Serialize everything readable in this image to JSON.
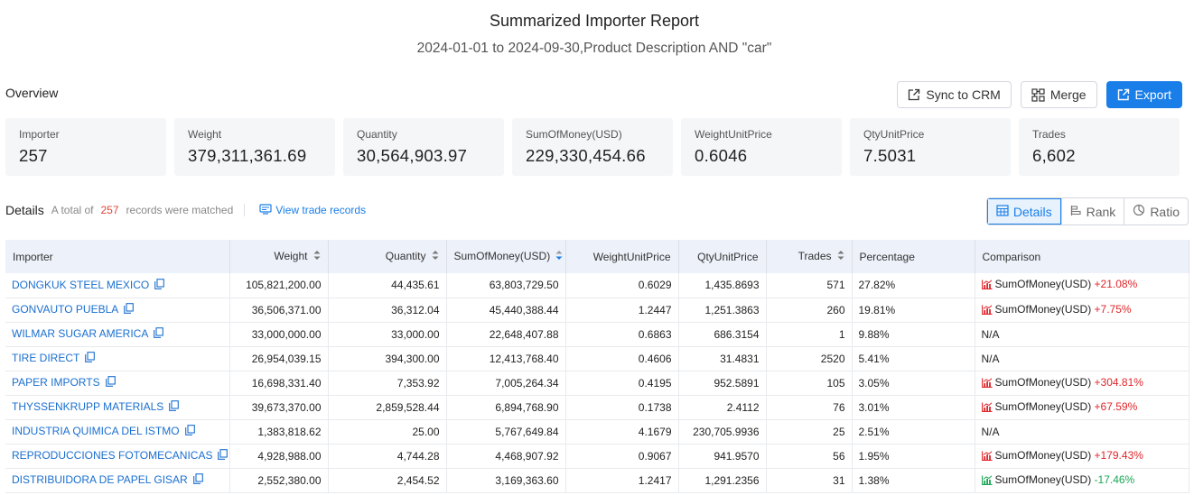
{
  "report": {
    "title": "Summarized Importer Report",
    "subtitle": "2024-01-01 to 2024-09-30,Product Description AND \"car\""
  },
  "overview": {
    "label": "Overview"
  },
  "actions": {
    "sync": "Sync to CRM",
    "merge": "Merge",
    "export": "Export"
  },
  "stats": [
    {
      "label": "Importer",
      "value": "257"
    },
    {
      "label": "Weight",
      "value": "379,311,361.69"
    },
    {
      "label": "Quantity",
      "value": "30,564,903.97"
    },
    {
      "label": "SumOfMoney(USD)",
      "value": "229,330,454.66"
    },
    {
      "label": "WeightUnitPrice",
      "value": "0.6046"
    },
    {
      "label": "QtyUnitPrice",
      "value": "7.5031"
    },
    {
      "label": "Trades",
      "value": "6,602"
    }
  ],
  "details": {
    "title": "Details",
    "prefix": "A total of",
    "count": "257",
    "suffix": "records were matched",
    "view_link": "View trade records"
  },
  "view_tabs": {
    "details": "Details",
    "rank": "Rank",
    "ratio": "Ratio"
  },
  "table": {
    "headers": {
      "importer": "Importer",
      "weight": "Weight",
      "quantity": "Quantity",
      "sum": "SumOfMoney(USD)",
      "wup": "WeightUnitPrice",
      "qup": "QtyUnitPrice",
      "trades": "Trades",
      "pct": "Percentage",
      "cmp": "Comparison"
    },
    "rows": [
      {
        "importer": "DONGKUK STEEL MEXICO",
        "weight": "105,821,200.00",
        "quantity": "44,435.61",
        "sum": "63,803,729.50",
        "wup": "0.6029",
        "qup": "1,435.8693",
        "trades": "571",
        "pct": "27.82%",
        "cmp_label": "SumOfMoney(USD)",
        "cmp_change": "+21.08%",
        "trend": "up"
      },
      {
        "importer": "GONVAUTO PUEBLA",
        "weight": "36,506,371.00",
        "quantity": "36,312.04",
        "sum": "45,440,388.44",
        "wup": "1.2447",
        "qup": "1,251.3863",
        "trades": "260",
        "pct": "19.81%",
        "cmp_label": "SumOfMoney(USD)",
        "cmp_change": "+7.75%",
        "trend": "up"
      },
      {
        "importer": "WILMAR SUGAR AMERICA",
        "weight": "33,000,000.00",
        "quantity": "33,000.00",
        "sum": "22,648,407.88",
        "wup": "0.6863",
        "qup": "686.3154",
        "trades": "1",
        "pct": "9.88%",
        "cmp_label": "N/A",
        "cmp_change": "",
        "trend": "none"
      },
      {
        "importer": "TIRE DIRECT",
        "weight": "26,954,039.15",
        "quantity": "394,300.00",
        "sum": "12,413,768.40",
        "wup": "0.4606",
        "qup": "31.4831",
        "trades": "2520",
        "pct": "5.41%",
        "cmp_label": "N/A",
        "cmp_change": "",
        "trend": "none"
      },
      {
        "importer": "PAPER IMPORTS",
        "weight": "16,698,331.40",
        "quantity": "7,353.92",
        "sum": "7,005,264.34",
        "wup": "0.4195",
        "qup": "952.5891",
        "trades": "105",
        "pct": "3.05%",
        "cmp_label": "SumOfMoney(USD)",
        "cmp_change": "+304.81%",
        "trend": "up"
      },
      {
        "importer": "THYSSENKRUPP MATERIALS",
        "weight": "39,673,370.00",
        "quantity": "2,859,528.44",
        "sum": "6,894,768.90",
        "wup": "0.1738",
        "qup": "2.4112",
        "trades": "76",
        "pct": "3.01%",
        "cmp_label": "SumOfMoney(USD)",
        "cmp_change": "+67.59%",
        "trend": "up"
      },
      {
        "importer": "INDUSTRIA QUIMICA DEL ISTMO",
        "weight": "1,383,818.62",
        "quantity": "25.00",
        "sum": "5,767,649.84",
        "wup": "4.1679",
        "qup": "230,705.9936",
        "trades": "25",
        "pct": "2.51%",
        "cmp_label": "N/A",
        "cmp_change": "",
        "trend": "none"
      },
      {
        "importer": "REPRODUCCIONES FOTOMECANICAS",
        "weight": "4,928,988.00",
        "quantity": "4,744.28",
        "sum": "4,468,907.92",
        "wup": "0.9067",
        "qup": "941.9570",
        "trades": "56",
        "pct": "1.95%",
        "cmp_label": "SumOfMoney(USD)",
        "cmp_change": "+179.43%",
        "trend": "up"
      },
      {
        "importer": "DISTRIBUIDORA DE PAPEL GISAR",
        "weight": "2,552,380.00",
        "quantity": "2,454.52",
        "sum": "3,169,363.60",
        "wup": "1.2417",
        "qup": "1,291.2356",
        "trades": "31",
        "pct": "1.38%",
        "cmp_label": "SumOfMoney(USD)",
        "cmp_change": "-17.46%",
        "trend": "down"
      }
    ]
  },
  "colors": {
    "accent": "#1a7ee8",
    "increase": "#e0262b",
    "decrease": "#19a654",
    "header_bg": "#edf1f9",
    "stat_bg": "#f5f6f8"
  },
  "icons": {
    "sync": "crm-sync-icon",
    "merge": "merge-icon",
    "export": "export-icon",
    "copy": "copy-icon",
    "trend_up": "trend-up-chart-icon",
    "trend_down": "trend-down-chart-icon",
    "sort": "sort-icon"
  }
}
